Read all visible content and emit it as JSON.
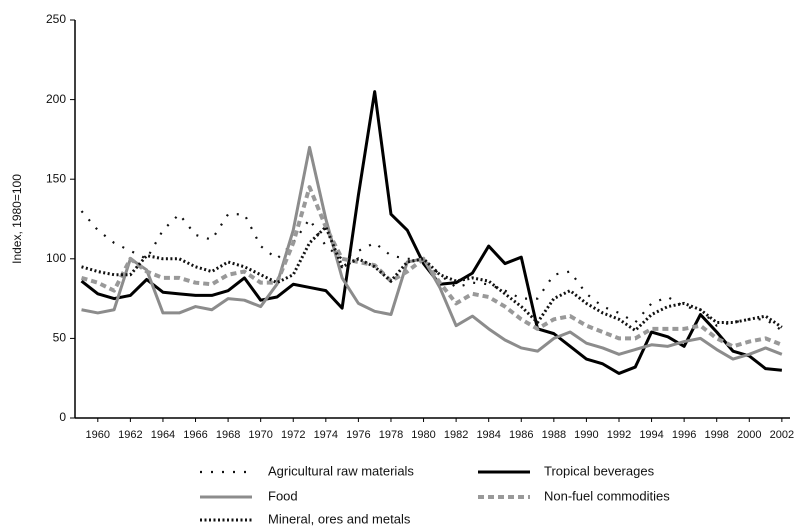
{
  "chart_data": {
    "type": "line",
    "y_label": "Index, 1980=100",
    "x": [
      1959,
      1960,
      1961,
      1962,
      1963,
      1964,
      1965,
      1966,
      1967,
      1968,
      1969,
      1970,
      1971,
      1972,
      1973,
      1974,
      1975,
      1976,
      1977,
      1978,
      1979,
      1980,
      1981,
      1982,
      1983,
      1984,
      1985,
      1986,
      1987,
      1988,
      1989,
      1990,
      1991,
      1992,
      1993,
      1994,
      1995,
      1996,
      1997,
      1998,
      1999,
      2000,
      2001,
      2002
    ],
    "xlim": [
      1958.6,
      2002.5
    ],
    "xticks": [
      1960,
      1962,
      1964,
      1966,
      1968,
      1970,
      1972,
      1974,
      1976,
      1978,
      1980,
      1982,
      1984,
      1986,
      1988,
      1990,
      1992,
      1994,
      1996,
      1998,
      2000,
      2002
    ],
    "ylim": [
      0,
      250
    ],
    "yticks": [
      0,
      50,
      100,
      150,
      200,
      250
    ],
    "series": [
      {
        "name": "Agricultural raw materials",
        "color": "#111111",
        "dash": "2 9",
        "width": 2.2,
        "values": [
          130,
          118,
          110,
          105,
          100,
          118,
          128,
          115,
          112,
          128,
          128,
          108,
          100,
          110,
          125,
          108,
          100,
          105,
          110,
          102,
          100,
          100,
          90,
          82,
          85,
          84,
          80,
          75,
          75,
          90,
          92,
          78,
          70,
          66,
          60,
          72,
          76,
          70,
          68,
          58,
          60,
          62,
          62,
          55
        ]
      },
      {
        "name": "Tropical beverages",
        "color": "#000000",
        "dash": "",
        "width": 3,
        "values": [
          86,
          78,
          75,
          77,
          87,
          79,
          78,
          77,
          77,
          80,
          88,
          74,
          76,
          84,
          82,
          80,
          69,
          140,
          205,
          128,
          118,
          97,
          84,
          85,
          91,
          108,
          97,
          101,
          56,
          53,
          45,
          37,
          34,
          28,
          32,
          54,
          51,
          45,
          65,
          54,
          42,
          39,
          31,
          30
        ]
      },
      {
        "name": "Food",
        "color": "#8c8c8c",
        "dash": "",
        "width": 3,
        "values": [
          68,
          66,
          68,
          100,
          93,
          66,
          66,
          70,
          68,
          75,
          74,
          70,
          84,
          118,
          170,
          125,
          88,
          72,
          67,
          65,
          98,
          100,
          82,
          58,
          64,
          56,
          49,
          44,
          42,
          50,
          54,
          47,
          44,
          40,
          43,
          46,
          45,
          48,
          50,
          43,
          37,
          40,
          44,
          40
        ]
      },
      {
        "name": "Non-fuel commodities",
        "color": "#999999",
        "dash": "6 4",
        "width": 4,
        "values": [
          88,
          85,
          80,
          100,
          92,
          88,
          88,
          85,
          84,
          90,
          92,
          85,
          85,
          110,
          145,
          120,
          100,
          98,
          96,
          86,
          92,
          100,
          85,
          72,
          78,
          76,
          70,
          62,
          56,
          62,
          64,
          58,
          54,
          50,
          50,
          56,
          56,
          56,
          58,
          50,
          45,
          48,
          50,
          46
        ]
      },
      {
        "name": "Mineral, ores and metals",
        "color": "#111111",
        "dash": "2 2.5",
        "width": 3,
        "values": [
          95,
          92,
          90,
          90,
          102,
          100,
          100,
          95,
          92,
          98,
          95,
          90,
          85,
          90,
          110,
          120,
          95,
          100,
          95,
          86,
          98,
          100,
          90,
          86,
          88,
          86,
          78,
          70,
          60,
          75,
          80,
          72,
          66,
          62,
          55,
          65,
          70,
          72,
          68,
          60,
          60,
          62,
          64,
          57
        ]
      }
    ]
  }
}
